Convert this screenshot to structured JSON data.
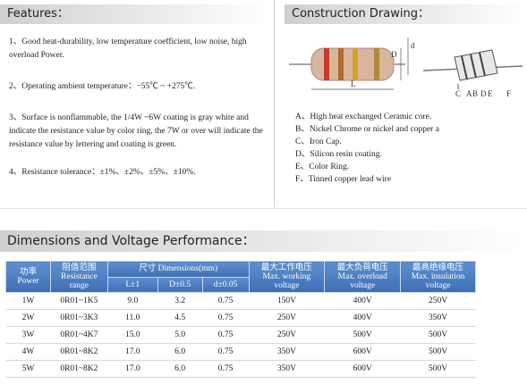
{
  "features": {
    "title": "Features：",
    "items": [
      "1、Good heat-durability, low temperature coefficient, low noise, high overload Power.",
      "2、Operating ambient temperature：−55℃ ~ +275℃.",
      "3、Surface is nonflammable, the 1/4W ~6W coating is gray white and indicate the resistance value by color ring, the 7W or over will indicate the resistance value by lettering and coating is green.",
      "4、Resistance tolerance：±1%、±2%、±5%、±10%."
    ]
  },
  "construction": {
    "title": "Construction Drawing：",
    "drawing_labels": [
      "d",
      "D",
      "L",
      "C",
      "A",
      "B",
      "D",
      "E",
      "F"
    ],
    "items": [
      "A、High heat exchanged Ceramic core.",
      "B、Nickel Chrome or nickel and copper a",
      "C、Iron Cap.",
      "D、Silicon resin coating.",
      "E、Color Ring.",
      "F、Tinned copper lead wire"
    ]
  },
  "dimensions": {
    "title": "Dimensions and Voltage Performance：",
    "table": {
      "header": [
        {
          "cn": "功率",
          "en": "Power"
        },
        {
          "cn": "阻值范围",
          "en": "Resistance range"
        },
        {
          "cn": "尺寸",
          "en": "Dimensions(mm)"
        },
        {
          "cn": "最大工作电压",
          "en": "Max. working voltage"
        },
        {
          "cn": "最大负荷电压",
          "en": "Max. overload voltage"
        },
        {
          "cn": "最高绝缘电压",
          "en": "Max. insulation voltage"
        }
      ],
      "subheader": [
        "L±1",
        "D±0.5",
        "d±0.05"
      ],
      "rows": [
        [
          "1W",
          "0R01~1K5",
          "9.0",
          "3.2",
          "0.75",
          "150V",
          "400V",
          "250V"
        ],
        [
          "2W",
          "0R01~3K3",
          "11.0",
          "4.5",
          "0.75",
          "250V",
          "400V",
          "350V"
        ],
        [
          "3W",
          "0R01~4K7",
          "15.0",
          "5.0",
          "0.75",
          "250V",
          "500V",
          "500V"
        ],
        [
          "4W",
          "0R01~8K2",
          "17.0",
          "6.0",
          "0.75",
          "350V",
          "600V",
          "500V"
        ],
        [
          "5W",
          "0R01~8K2",
          "17.0",
          "6.0",
          "0.75",
          "350V",
          "600V",
          "500V"
        ]
      ]
    }
  }
}
